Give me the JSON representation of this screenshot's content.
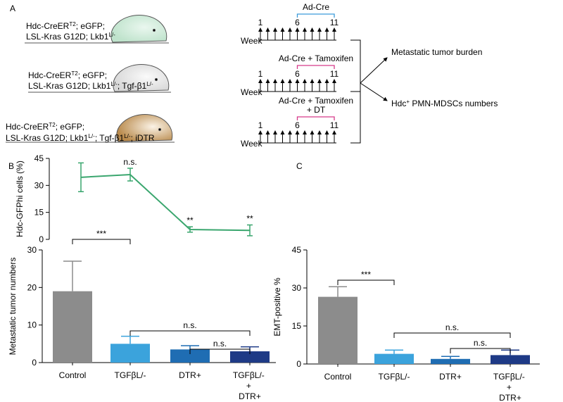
{
  "panel_labels": [
    "A",
    "B",
    "C"
  ],
  "diagram": {
    "genotypes": [
      [
        [
          {
            "text": "Hdc-CreER"
          },
          {
            "sup": "T2"
          },
          {
            "text": "; eGFP;"
          }
        ],
        [
          {
            "text": "LSL-Kras G12D; Lkb1"
          },
          {
            "sup": "L/-"
          }
        ]
      ],
      [
        [
          {
            "text": "Hdc-CreER"
          },
          {
            "sup": "T2"
          },
          {
            "text": "; eGFP;"
          }
        ],
        [
          {
            "text": "LSL-Kras G12D; Lkb1"
          },
          {
            "sup": "L/-"
          },
          {
            "text": "; Tgf-β1"
          },
          {
            "sup": "L/-"
          }
        ]
      ],
      [
        [
          {
            "text": "Hdc-CreER"
          },
          {
            "sup": "T2"
          },
          {
            "text": "; eGFP;"
          }
        ],
        [
          {
            "text": "LSL-Kras G12D; Lkb1"
          },
          {
            "sup": "L/-"
          },
          {
            "text": "; Tgf-β1"
          },
          {
            "sup": "L/-"
          },
          {
            "text": "; iDTR"
          }
        ]
      ]
    ],
    "timelines": [
      {
        "week_label": "Week",
        "ticks": [
          "1",
          "6",
          "11"
        ],
        "treatment": [
          "Ad-Cre"
        ],
        "color": "#3a9ad9"
      },
      {
        "week_label": "Week",
        "ticks": [
          "1",
          "6",
          "11"
        ],
        "treatment": [
          "Ad-Cre + Tamoxifen"
        ],
        "color": "#d63a8a"
      },
      {
        "week_label": "Week",
        "ticks": [
          "1",
          "6",
          "11"
        ],
        "treatment": [
          "Ad-Cre + Tamoxifen",
          "+ DT"
        ],
        "color": "#d63a8a"
      }
    ],
    "outcomes": [
      [
        {
          "text": "Metastatic tumor burden"
        }
      ],
      [
        {
          "text": "Hdc"
        },
        {
          "sup": "+"
        },
        {
          "text": " PMN-MDSCs numbers"
        }
      ]
    ]
  },
  "chart_data": [
    {
      "type": "line",
      "y_label": "Hdc-GFPhi cells (%)",
      "color": "#3aa66e",
      "categories": [
        "Control",
        "TGFβL/-",
        "DTR+",
        "TGFβL/- + DTR+"
      ],
      "values": [
        34.5,
        36,
        5.5,
        5
      ],
      "errors": [
        8,
        3.5,
        1.5,
        3
      ],
      "annotations": [
        "n.s.",
        "**",
        "**"
      ],
      "ylim": [
        0,
        45
      ],
      "yticks": [
        0,
        15,
        30,
        45
      ]
    },
    {
      "type": "bar",
      "y_label": "Metastatic tumor numbers",
      "categories": [
        "Control",
        "TGFβL/-",
        "DTR+",
        "TGFβL/- + DTR+"
      ],
      "values": [
        19,
        5,
        3.5,
        3
      ],
      "errors": [
        8,
        2,
        1,
        1.2
      ],
      "colors": [
        "#8c8c8c",
        "#3ba3dc",
        "#1f6db3",
        "#1e3a86"
      ],
      "annotations": [
        "***",
        "n.s.",
        "n.s."
      ],
      "ylim": [
        0,
        30
      ],
      "yticks": [
        0,
        10,
        20,
        30
      ]
    },
    {
      "type": "bar",
      "y_label": "EMT-positive %",
      "categories": [
        "Control",
        "TGFβL/-",
        "DTR+",
        "TGFβL/- + DTR+"
      ],
      "values": [
        26.5,
        4,
        2,
        3.5
      ],
      "errors": [
        4,
        1.5,
        1,
        2
      ],
      "colors": [
        "#8c8c8c",
        "#3ba3dc",
        "#1f6db3",
        "#1e3a86"
      ],
      "annotations": [
        "***",
        "n.s.",
        "n.s."
      ],
      "ylim": [
        0,
        45
      ],
      "yticks": [
        0,
        15,
        30,
        45
      ]
    }
  ]
}
